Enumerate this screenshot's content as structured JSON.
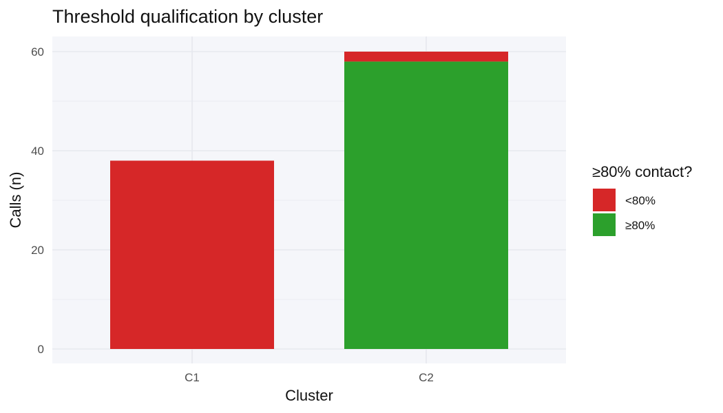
{
  "chart_data": {
    "type": "bar",
    "stacked": true,
    "title": "Threshold qualification by cluster",
    "xlabel": "Cluster",
    "ylabel": "Calls (n)",
    "categories": [
      "C1",
      "C2"
    ],
    "ylim": [
      0,
      60
    ],
    "yticks": [
      0,
      20,
      40,
      60
    ],
    "grid": true,
    "legend": {
      "title": "≥80% contact?",
      "position": "right"
    },
    "series": [
      {
        "name": "≥80%",
        "color": "#2ca02c",
        "values": [
          0,
          58
        ]
      },
      {
        "name": "<80%",
        "color": "#d62728",
        "values": [
          38,
          2
        ]
      }
    ],
    "legend_order": [
      "<80%",
      "≥80%"
    ],
    "panel_background": "#f5f6fa",
    "grid_color": "#e6e8ee"
  }
}
